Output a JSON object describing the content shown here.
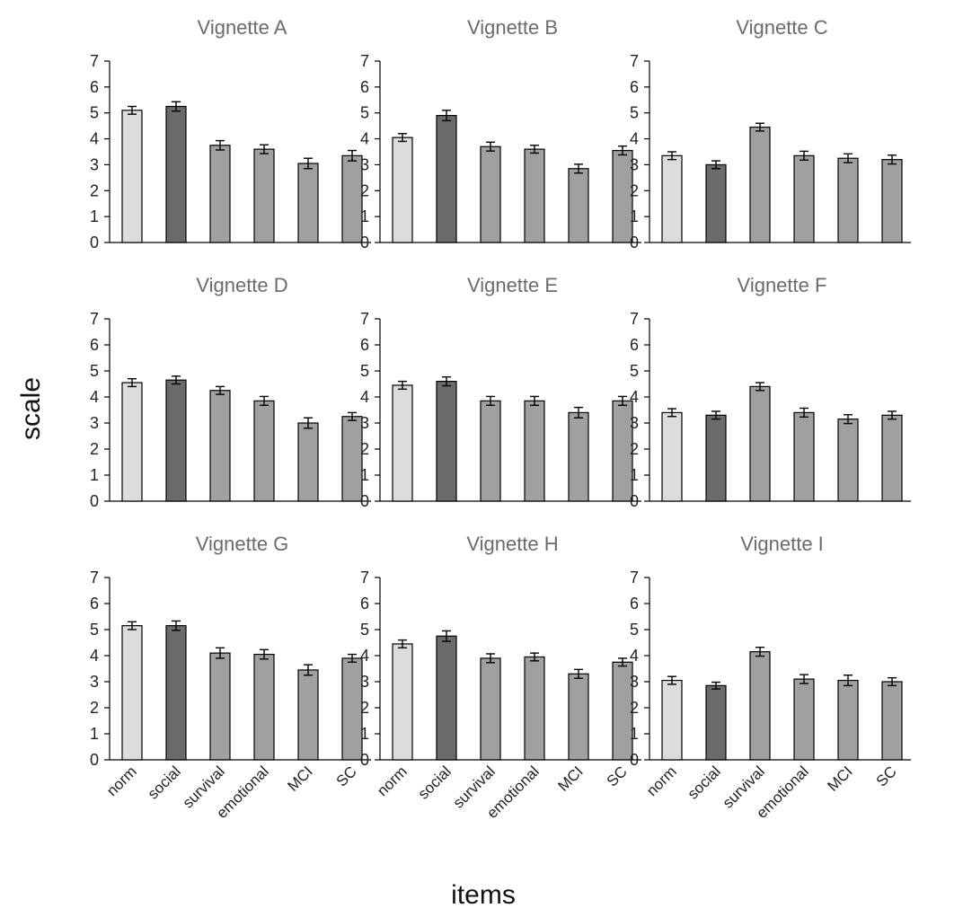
{
  "chart_data": {
    "type": "bar",
    "xlabel": "items",
    "ylabel": "scale",
    "categories": [
      "norm",
      "social",
      "survival",
      "emotional",
      "MCI",
      "SC"
    ],
    "ylim": [
      0,
      7
    ],
    "yticks": [
      0,
      1,
      2,
      3,
      4,
      5,
      6,
      7
    ],
    "grid": false,
    "legend": "none",
    "bar_colors": [
      "#dcdcdc",
      "#6b6b6b",
      "#a0a0a0",
      "#a0a0a0",
      "#a0a0a0",
      "#a0a0a0"
    ],
    "panels": [
      {
        "title": "Vignette A",
        "values": [
          5.1,
          5.25,
          3.75,
          3.6,
          3.05,
          3.35
        ],
        "errors": [
          0.15,
          0.18,
          0.18,
          0.17,
          0.2,
          0.2
        ]
      },
      {
        "title": "Vignette B",
        "values": [
          4.05,
          4.9,
          3.7,
          3.6,
          2.85,
          3.55
        ],
        "errors": [
          0.15,
          0.2,
          0.17,
          0.15,
          0.17,
          0.17
        ]
      },
      {
        "title": "Vignette C",
        "values": [
          3.35,
          3.0,
          4.45,
          3.35,
          3.25,
          3.2
        ],
        "errors": [
          0.15,
          0.15,
          0.15,
          0.17,
          0.17,
          0.17
        ]
      },
      {
        "title": "Vignette D",
        "values": [
          4.55,
          4.65,
          4.25,
          3.85,
          3.0,
          3.25
        ],
        "errors": [
          0.15,
          0.15,
          0.15,
          0.17,
          0.2,
          0.15
        ]
      },
      {
        "title": "Vignette E",
        "values": [
          4.45,
          4.6,
          3.85,
          3.85,
          3.4,
          3.85
        ],
        "errors": [
          0.15,
          0.17,
          0.17,
          0.17,
          0.2,
          0.17
        ]
      },
      {
        "title": "Vignette F",
        "values": [
          3.4,
          3.3,
          4.4,
          3.4,
          3.15,
          3.3
        ],
        "errors": [
          0.15,
          0.15,
          0.15,
          0.17,
          0.17,
          0.15
        ]
      },
      {
        "title": "Vignette G",
        "values": [
          5.15,
          5.15,
          4.1,
          4.05,
          3.45,
          3.9
        ],
        "errors": [
          0.15,
          0.18,
          0.2,
          0.18,
          0.2,
          0.15
        ]
      },
      {
        "title": "Vignette H",
        "values": [
          4.45,
          4.75,
          3.9,
          3.95,
          3.3,
          3.75
        ],
        "errors": [
          0.15,
          0.2,
          0.17,
          0.15,
          0.17,
          0.15
        ]
      },
      {
        "title": "Vignette I",
        "values": [
          3.05,
          2.85,
          4.15,
          3.1,
          3.05,
          3.0
        ],
        "errors": [
          0.15,
          0.13,
          0.17,
          0.17,
          0.2,
          0.15
        ]
      }
    ]
  }
}
